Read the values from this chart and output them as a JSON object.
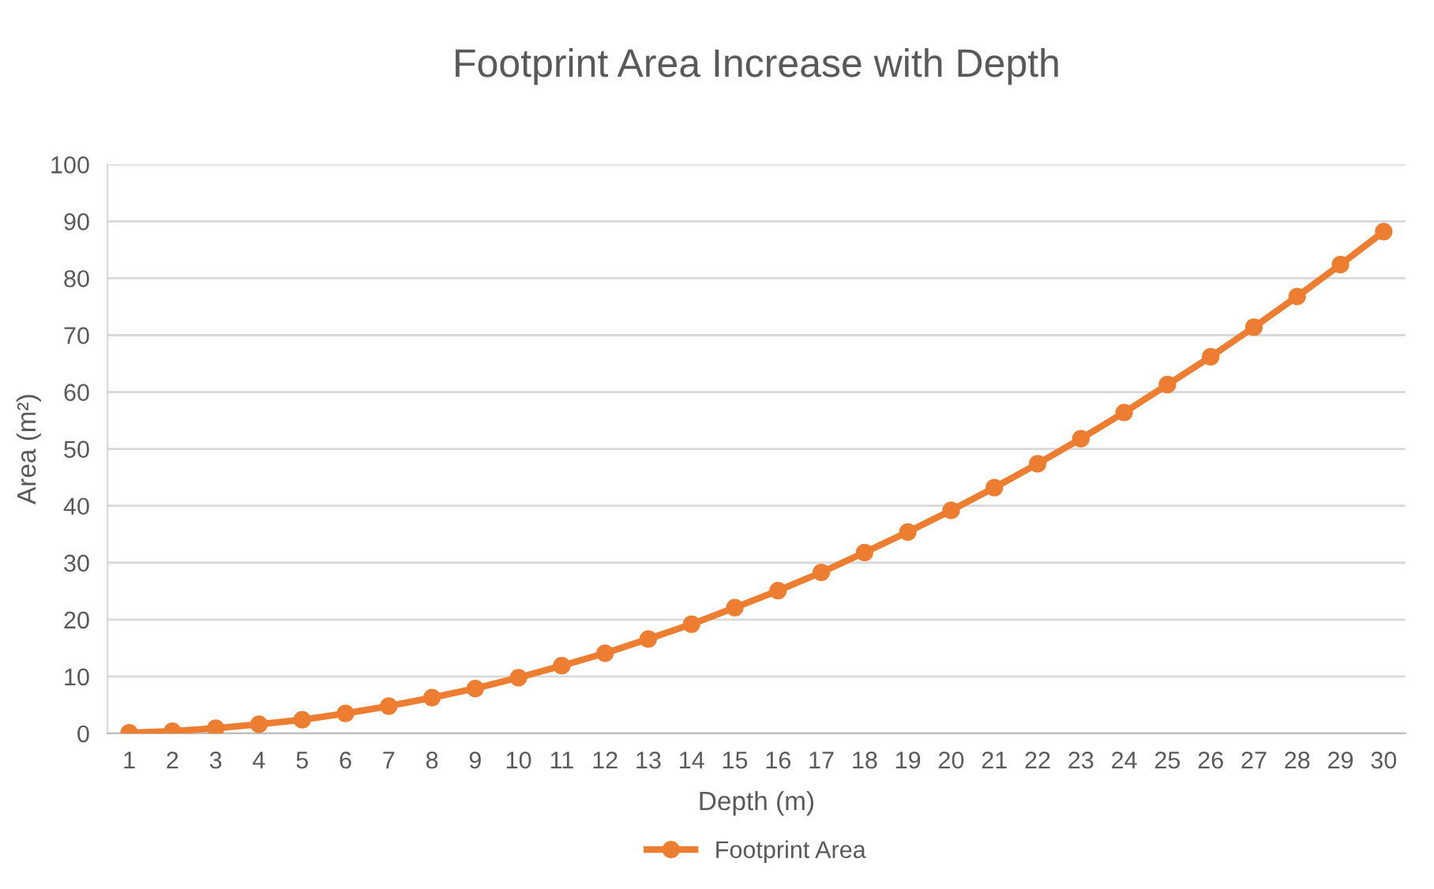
{
  "chart_data": {
    "type": "line",
    "title": "Footprint Area Increase with Depth",
    "xlabel": "Depth (m)",
    "ylabel": "Area (m²)",
    "categories": [
      "1",
      "2",
      "3",
      "4",
      "5",
      "6",
      "7",
      "8",
      "9",
      "10",
      "11",
      "12",
      "13",
      "14",
      "15",
      "16",
      "17",
      "18",
      "19",
      "20",
      "21",
      "22",
      "23",
      "24",
      "25",
      "26",
      "27",
      "28",
      "29",
      "30"
    ],
    "series": [
      {
        "name": "Footprint Area",
        "color": "#ed7d31",
        "values": [
          0.1,
          0.4,
          0.9,
          1.6,
          2.4,
          3.5,
          4.8,
          6.3,
          7.9,
          9.8,
          11.9,
          14.1,
          16.6,
          19.2,
          22.1,
          25.1,
          28.3,
          31.8,
          35.4,
          39.2,
          43.2,
          47.4,
          51.8,
          56.4,
          61.3,
          66.2,
          71.4,
          76.8,
          82.4,
          88.2
        ]
      }
    ],
    "ylim": [
      0,
      100
    ],
    "yticks": [
      0,
      10,
      20,
      30,
      40,
      50,
      60,
      70,
      80,
      90,
      100
    ],
    "grid": "y",
    "legend": "bottom",
    "marker": "circle",
    "line_style": "solid"
  }
}
